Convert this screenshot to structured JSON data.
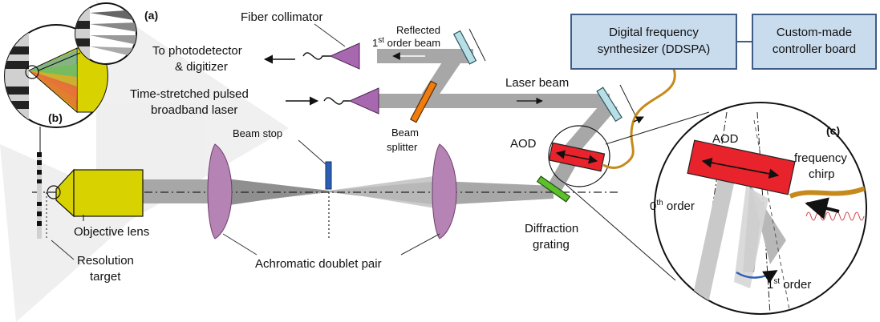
{
  "diagram": {
    "panel_labels": {
      "a": "(a)",
      "b": "(b)",
      "c": "(c)"
    },
    "labels": {
      "fiber_collimator": "Fiber collimator",
      "to_photodetector_line1": "To photodetector",
      "to_photodetector_line2": "& digitizer",
      "reflected_line1": "Reflected",
      "reflected_line2_pre": "1",
      "reflected_line2_sup": "st",
      "reflected_line2_post": " order beam",
      "laser_source_line1": "Time-stretched pulsed",
      "laser_source_line2": "broadband laser",
      "laser_beam": "Laser beam",
      "beam_splitter_line1": "Beam",
      "beam_splitter_line2": "splitter",
      "beam_stop": "Beam stop",
      "aod": "AOD",
      "objective_lens": "Objective lens",
      "achromatic_doublet_pair": "Achromatic doublet pair",
      "diffraction_grating_line1": "Diffraction",
      "diffraction_grating_line2": "grating",
      "resolution_target_line1": "Resolution",
      "resolution_target_line2": "target"
    },
    "boxes": {
      "ddspa_line1": "Digital frequency",
      "ddspa_line2": "synthesizer (DDSPA)",
      "controller_line1": "Custom-made",
      "controller_line2": "controller board"
    },
    "inset_c": {
      "aod": "AOD",
      "frequency_line1": "frequency",
      "frequency_line2": "chirp",
      "zeroth_pre": "0",
      "zeroth_sup": "th",
      "zeroth_post": " order",
      "first_pre": "1",
      "first_sup": "st",
      "first_post": " order"
    },
    "colors": {
      "beam": "#a7a7a7",
      "box_fill": "#c9dcee",
      "box_stroke": "#3f5d87",
      "lens": "#b684b4",
      "objective": "#d8d200",
      "aod": "#e8232b",
      "splitter": "#f07c10",
      "grating": "#5cc02a",
      "mirror": "#b9dfe6",
      "beam_stop": "#2b5fb3",
      "rf_cable": "#c58a1b",
      "collimator": "#a768b0"
    }
  }
}
